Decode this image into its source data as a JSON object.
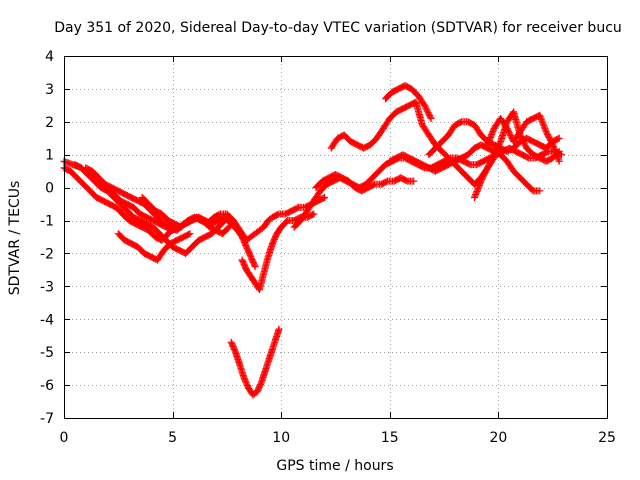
{
  "chart_data": {
    "type": "scatter",
    "title": "Day 351 of 2020, Sidereal Day-to-day VTEC variation (SDTVAR) for receiver bucu",
    "xlabel": "GPS time / hours",
    "ylabel": "SDTVAR / TECUs",
    "xlim": [
      0,
      25
    ],
    "ylim": [
      -7,
      4
    ],
    "x_ticks": [
      0,
      5,
      10,
      15,
      20,
      25
    ],
    "y_ticks": [
      -7,
      -6,
      -5,
      -4,
      -3,
      -2,
      -1,
      0,
      1,
      2,
      3,
      4
    ],
    "grid": true,
    "marker": "plus",
    "color": "#ff0000",
    "series": [
      {
        "x": [
          0.0,
          0.4,
          0.8,
          1.1,
          1.4,
          1.7,
          2.0,
          2.3,
          2.6,
          2.9,
          3.2,
          3.5,
          3.8,
          4.1,
          4.4,
          4.7,
          5.0,
          5.3,
          5.6,
          5.9,
          6.2,
          6.5,
          6.8,
          7.1,
          7.4,
          7.7,
          8.0,
          8.2,
          8.4,
          8.6,
          8.8
        ],
        "y": [
          0.8,
          0.7,
          0.6,
          0.4,
          0.2,
          0.0,
          -0.1,
          -0.2,
          -0.4,
          -0.5,
          -0.6,
          -0.8,
          -0.9,
          -1.0,
          -1.1,
          -1.2,
          -1.3,
          -1.2,
          -1.1,
          -1.0,
          -0.9,
          -1.0,
          -1.1,
          -1.0,
          -0.9,
          -1.1,
          -1.3,
          -1.5,
          -1.8,
          -2.1,
          -2.4
        ]
      },
      {
        "x": [
          0.0,
          0.3,
          0.6,
          0.9,
          1.2,
          1.5,
          1.8,
          2.1,
          2.4,
          2.7,
          3.0,
          3.3,
          3.6,
          3.9,
          4.2,
          4.5,
          4.8,
          5.1
        ],
        "y": [
          0.6,
          0.5,
          0.3,
          0.1,
          -0.1,
          -0.3,
          -0.4,
          -0.5,
          -0.6,
          -0.8,
          -1.0,
          -1.1,
          -1.2,
          -1.3,
          -1.5,
          -1.6,
          -1.4,
          -1.2
        ]
      },
      {
        "x": [
          0.5,
          0.8,
          1.1,
          1.4,
          1.7,
          2.0,
          2.3,
          2.6,
          2.9,
          3.2,
          3.5,
          3.8,
          4.1,
          4.4,
          4.7,
          5.0,
          5.3,
          5.6,
          5.9,
          6.2,
          6.5,
          6.8,
          7.1,
          7.4
        ],
        "y": [
          0.7,
          0.6,
          0.4,
          0.3,
          0.1,
          -0.1,
          -0.3,
          -0.5,
          -0.7,
          -0.9,
          -1.0,
          -1.1,
          -1.2,
          -1.4,
          -1.6,
          -1.8,
          -1.9,
          -2.0,
          -1.8,
          -1.6,
          -1.5,
          -1.4,
          -1.2,
          -1.0
        ]
      },
      {
        "x": [
          1.0,
          1.3,
          1.6,
          1.9,
          2.2,
          2.5,
          2.8,
          3.1,
          3.4,
          3.7,
          4.0,
          4.3,
          4.6,
          4.9,
          5.2,
          5.5,
          5.8,
          6.1,
          6.4,
          6.7,
          7.0,
          7.3,
          7.6
        ],
        "y": [
          0.6,
          0.5,
          0.3,
          0.1,
          0.0,
          -0.1,
          -0.2,
          -0.3,
          -0.4,
          -0.5,
          -0.7,
          -0.9,
          -1.1,
          -1.2,
          -1.3,
          -1.1,
          -1.0,
          -0.9,
          -1.0,
          -1.2,
          -1.3,
          -1.4,
          -1.2
        ]
      },
      {
        "x": [
          2.5,
          2.8,
          3.1,
          3.4,
          3.7,
          4.0,
          4.3,
          4.6,
          4.9,
          5.2,
          5.5,
          5.8
        ],
        "y": [
          -1.4,
          -1.6,
          -1.7,
          -1.8,
          -2.0,
          -2.1,
          -2.2,
          -1.9,
          -1.7,
          -1.6,
          -1.5,
          -1.4
        ]
      },
      {
        "x": [
          3.6,
          3.9,
          4.2,
          4.5,
          4.8,
          5.1,
          5.4,
          5.7,
          6.0,
          6.3,
          6.6,
          6.9,
          7.2,
          7.5,
          7.8,
          8.0,
          8.2,
          8.4,
          8.6,
          8.8,
          9.0,
          9.2,
          9.4,
          9.6,
          9.9,
          10.2,
          10.5,
          10.8,
          11.1,
          11.4,
          11.7,
          12.0
        ],
        "y": [
          -0.3,
          -0.5,
          -0.7,
          -0.8,
          -1.0,
          -1.1,
          -1.2,
          -1.0,
          -0.9,
          -1.0,
          -1.1,
          -0.9,
          -0.8,
          -0.8,
          -1.0,
          -1.2,
          -1.4,
          -1.6,
          -1.5,
          -1.4,
          -1.3,
          -1.2,
          -1.0,
          -0.9,
          -0.8,
          -0.8,
          -0.7,
          -0.6,
          -0.6,
          -0.5,
          -0.4,
          -0.3
        ]
      },
      {
        "x": [
          7.7,
          7.9,
          8.1,
          8.3,
          8.5,
          8.7,
          8.9,
          9.1,
          9.3,
          9.5,
          9.7,
          9.9
        ],
        "y": [
          -4.7,
          -5.0,
          -5.4,
          -5.8,
          -6.1,
          -6.3,
          -6.2,
          -5.9,
          -5.5,
          -5.1,
          -4.7,
          -4.3
        ]
      },
      {
        "x": [
          8.2,
          8.4,
          8.6,
          8.8,
          9.0,
          9.2,
          9.4,
          9.6,
          9.8,
          10.0,
          10.3,
          10.6,
          10.9,
          11.2,
          11.5
        ],
        "y": [
          -2.2,
          -2.5,
          -2.7,
          -2.9,
          -3.1,
          -2.6,
          -2.1,
          -1.7,
          -1.4,
          -1.2,
          -1.0,
          -1.0,
          -0.9,
          -0.9,
          -0.8
        ]
      },
      {
        "x": [
          10.6,
          10.9,
          11.2,
          11.5,
          11.8,
          12.1,
          12.4,
          12.7,
          13.0,
          13.3,
          13.6,
          13.9,
          14.2,
          14.5,
          14.8,
          15.1,
          15.4,
          15.7,
          16.0,
          16.3,
          16.6,
          16.9,
          17.2,
          17.5,
          17.8,
          18.1,
          18.4,
          18.7,
          19.0,
          19.3,
          19.6,
          19.9,
          20.2,
          20.5,
          20.8,
          21.1,
          21.4,
          21.7,
          22.0,
          22.3,
          22.6,
          22.9
        ],
        "y": [
          -1.2,
          -1.0,
          -0.7,
          -0.4,
          -0.1,
          0.1,
          0.2,
          0.3,
          0.2,
          0.1,
          0.0,
          0.1,
          0.3,
          0.5,
          0.7,
          0.8,
          0.9,
          0.9,
          0.8,
          0.7,
          0.6,
          0.6,
          0.7,
          0.8,
          0.9,
          0.9,
          0.8,
          0.7,
          0.7,
          0.8,
          0.9,
          1.0,
          1.1,
          1.2,
          1.1,
          1.0,
          0.9,
          0.9,
          1.0,
          1.1,
          1.1,
          1.0
        ]
      },
      {
        "x": [
          11.6,
          11.9,
          12.2,
          12.5,
          12.8,
          13.1,
          13.4,
          13.7,
          14.0,
          14.3,
          14.6,
          14.9,
          15.2,
          15.5,
          15.8,
          16.1
        ],
        "y": [
          0.0,
          0.2,
          0.3,
          0.4,
          0.3,
          0.2,
          0.0,
          -0.1,
          0.0,
          0.1,
          0.1,
          0.2,
          0.2,
          0.3,
          0.2,
          0.2
        ]
      },
      {
        "x": [
          12.3,
          12.6,
          12.9,
          13.2,
          13.5,
          13.8,
          14.1,
          14.4,
          14.7,
          15.0,
          15.3,
          15.6,
          15.9,
          16.2,
          16.5,
          16.8,
          17.1,
          17.4,
          17.7,
          18.0,
          18.3,
          18.6,
          18.9,
          19.2,
          19.5,
          19.8
        ],
        "y": [
          1.2,
          1.5,
          1.6,
          1.4,
          1.3,
          1.2,
          1.3,
          1.5,
          1.8,
          2.1,
          2.3,
          2.4,
          2.5,
          2.6,
          1.9,
          1.6,
          1.3,
          1.1,
          0.9,
          0.7,
          0.5,
          0.3,
          0.1,
          0.3,
          0.6,
          0.9
        ]
      },
      {
        "x": [
          14.8,
          15.1,
          15.4,
          15.7,
          16.0,
          16.3,
          16.6,
          16.9
        ],
        "y": [
          2.7,
          2.9,
          3.0,
          3.1,
          3.0,
          2.8,
          2.5,
          2.1
        ]
      },
      {
        "x": [
          15.0,
          15.3,
          15.6,
          15.9,
          16.2,
          16.5,
          16.8,
          17.1,
          17.4,
          17.7,
          18.0,
          18.3,
          18.6,
          18.9,
          19.2,
          19.5,
          19.8,
          20.1,
          20.4,
          20.7,
          21.0,
          21.3,
          21.6,
          21.9
        ],
        "y": [
          0.8,
          0.9,
          1.0,
          0.9,
          0.8,
          0.7,
          0.6,
          0.5,
          0.6,
          0.7,
          0.8,
          0.9,
          1.0,
          1.2,
          1.3,
          1.2,
          1.1,
          1.0,
          0.8,
          0.5,
          0.3,
          0.1,
          -0.1,
          -0.1
        ]
      },
      {
        "x": [
          16.8,
          17.1,
          17.4,
          17.7,
          18.0,
          18.3,
          18.6,
          18.9,
          19.2,
          19.5,
          19.8,
          20.1,
          20.4,
          20.7,
          21.0,
          21.3,
          21.6,
          21.9,
          22.2,
          22.5,
          22.8
        ],
        "y": [
          1.0,
          1.2,
          1.4,
          1.6,
          1.9,
          2.0,
          2.0,
          1.9,
          1.6,
          1.4,
          1.3,
          1.2,
          1.1,
          1.2,
          1.4,
          1.5,
          1.4,
          1.3,
          1.2,
          1.4,
          1.5
        ]
      },
      {
        "x": [
          18.9,
          19.2,
          19.5,
          19.8,
          20.1,
          20.4,
          20.7,
          21.0,
          21.3,
          21.6,
          21.9,
          22.2,
          22.5,
          22.8
        ],
        "y": [
          -0.3,
          0.2,
          0.6,
          1.0,
          1.4,
          2.0,
          2.3,
          1.6,
          1.2,
          1.0,
          0.9,
          0.8,
          0.9,
          1.1
        ]
      },
      {
        "x": [
          19.5,
          19.8,
          20.1,
          20.4,
          20.7,
          21.0,
          21.3,
          21.6,
          21.9,
          22.2,
          22.5,
          22.8
        ],
        "y": [
          1.3,
          1.8,
          2.1,
          1.8,
          1.4,
          1.7,
          2.0,
          2.1,
          2.2,
          1.7,
          1.3,
          0.8
        ]
      }
    ]
  }
}
